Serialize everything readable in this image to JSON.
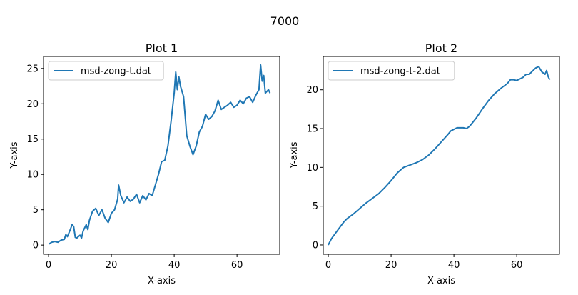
{
  "figure": {
    "suptitle": "7000"
  },
  "chart_data": [
    {
      "type": "line",
      "title": "Plot 1",
      "xlabel": "X-axis",
      "ylabel": "Y-axis",
      "xlim": [
        -1.6,
        73.6
      ],
      "ylim": [
        -1.3,
        26.7
      ],
      "xticks": [
        0,
        20,
        40,
        60
      ],
      "yticks": [
        0,
        5,
        10,
        15,
        20,
        25
      ],
      "legend": "upper left",
      "line_color": "#1f77b4",
      "series": [
        {
          "name": "msd-zong-t.dat",
          "points": [
            [
              0,
              0.1
            ],
            [
              1,
              0.4
            ],
            [
              2,
              0.5
            ],
            [
              3,
              0.4
            ],
            [
              4,
              0.7
            ],
            [
              5,
              0.8
            ],
            [
              5.5,
              1.5
            ],
            [
              6,
              1.2
            ],
            [
              7,
              2.3
            ],
            [
              7.5,
              2.9
            ],
            [
              8,
              2.6
            ],
            [
              8.5,
              1.1
            ],
            [
              9,
              1.0
            ],
            [
              10,
              1.4
            ],
            [
              10.5,
              1.0
            ],
            [
              11,
              2.0
            ],
            [
              12,
              2.9
            ],
            [
              12.5,
              2.2
            ],
            [
              13,
              3.5
            ],
            [
              14,
              4.8
            ],
            [
              15,
              5.2
            ],
            [
              16,
              4.2
            ],
            [
              17,
              5.0
            ],
            [
              18,
              3.8
            ],
            [
              19,
              3.2
            ],
            [
              20,
              4.5
            ],
            [
              21,
              5.0
            ],
            [
              22,
              6.5
            ],
            [
              22.3,
              8.5
            ],
            [
              23,
              7.0
            ],
            [
              24,
              6.0
            ],
            [
              25,
              6.8
            ],
            [
              26,
              6.2
            ],
            [
              27,
              6.5
            ],
            [
              28,
              7.2
            ],
            [
              29,
              6.0
            ],
            [
              30,
              7.0
            ],
            [
              31,
              6.4
            ],
            [
              32,
              7.3
            ],
            [
              33,
              7.0
            ],
            [
              34,
              8.5
            ],
            [
              35,
              10.0
            ],
            [
              36,
              11.8
            ],
            [
              37,
              12.0
            ],
            [
              38,
              14.0
            ],
            [
              39,
              17.5
            ],
            [
              40,
              21.5
            ],
            [
              40.5,
              24.5
            ],
            [
              41,
              22.0
            ],
            [
              41.5,
              23.8
            ],
            [
              42,
              22.5
            ],
            [
              43,
              21.0
            ],
            [
              44,
              15.5
            ],
            [
              45,
              14.0
            ],
            [
              46,
              12.8
            ],
            [
              47,
              14.0
            ],
            [
              48,
              16.0
            ],
            [
              49,
              16.8
            ],
            [
              50,
              18.5
            ],
            [
              51,
              17.8
            ],
            [
              52,
              18.2
            ],
            [
              53,
              19.0
            ],
            [
              54,
              20.5
            ],
            [
              55,
              19.2
            ],
            [
              56,
              19.5
            ],
            [
              57,
              19.8
            ],
            [
              58,
              20.2
            ],
            [
              59,
              19.5
            ],
            [
              60,
              19.8
            ],
            [
              61,
              20.5
            ],
            [
              62,
              20.0
            ],
            [
              63,
              20.8
            ],
            [
              64,
              21.0
            ],
            [
              65,
              20.2
            ],
            [
              66,
              21.2
            ],
            [
              67,
              22.0
            ],
            [
              67.5,
              25.5
            ],
            [
              68,
              23.2
            ],
            [
              68.5,
              24.0
            ],
            [
              69,
              21.5
            ],
            [
              70,
              22.0
            ],
            [
              70.5,
              21.5
            ]
          ]
        }
      ]
    },
    {
      "type": "line",
      "title": "Plot 2",
      "xlabel": "X-axis",
      "ylabel": "Y-axis",
      "xlim": [
        -1.6,
        73.6
      ],
      "ylim": [
        -1.2,
        24.3
      ],
      "xticks": [
        0,
        20,
        40,
        60
      ],
      "yticks": [
        0,
        5,
        10,
        15,
        20
      ],
      "legend": "upper left",
      "line_color": "#1f77b4",
      "series": [
        {
          "name": "msd-zong-t-2.dat",
          "points": [
            [
              0,
              0
            ],
            [
              1,
              0.8
            ],
            [
              3,
              1.9
            ],
            [
              5,
              3.0
            ],
            [
              6,
              3.4
            ],
            [
              8,
              4.0
            ],
            [
              10,
              4.7
            ],
            [
              12,
              5.4
            ],
            [
              14,
              6.0
            ],
            [
              16,
              6.6
            ],
            [
              18,
              7.4
            ],
            [
              20,
              8.3
            ],
            [
              22,
              9.3
            ],
            [
              24,
              10.0
            ],
            [
              26,
              10.3
            ],
            [
              28,
              10.6
            ],
            [
              30,
              11.0
            ],
            [
              32,
              11.6
            ],
            [
              34,
              12.4
            ],
            [
              36,
              13.3
            ],
            [
              38,
              14.2
            ],
            [
              39,
              14.7
            ],
            [
              41,
              15.1
            ],
            [
              43,
              15.1
            ],
            [
              44,
              15.0
            ],
            [
              45,
              15.3
            ],
            [
              47,
              16.3
            ],
            [
              49,
              17.5
            ],
            [
              51,
              18.6
            ],
            [
              53,
              19.5
            ],
            [
              55,
              20.2
            ],
            [
              57,
              20.8
            ],
            [
              58,
              21.3
            ],
            [
              59,
              21.3
            ],
            [
              60,
              21.2
            ],
            [
              61,
              21.4
            ],
            [
              62,
              21.6
            ],
            [
              63,
              22.0
            ],
            [
              64,
              22.0
            ],
            [
              65,
              22.4
            ],
            [
              66,
              22.8
            ],
            [
              67,
              23.0
            ],
            [
              68,
              22.3
            ],
            [
              69,
              22.0
            ],
            [
              69.5,
              22.5
            ],
            [
              70,
              21.7
            ],
            [
              70.5,
              21.3
            ]
          ]
        }
      ]
    }
  ]
}
